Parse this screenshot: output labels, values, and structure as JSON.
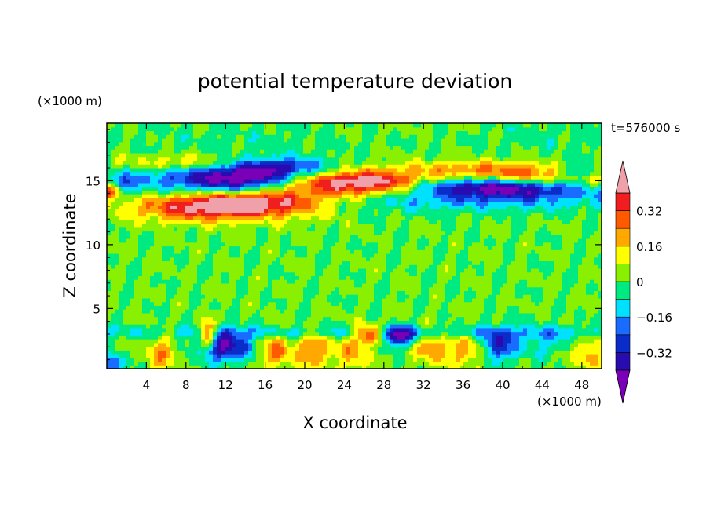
{
  "chart_data": {
    "type": "heatmap",
    "title": "potential temperature deviation",
    "xlabel": "X coordinate",
    "ylabel": "Z coordinate",
    "x_unit": "(×1000 m)",
    "y_unit": "(×1000 m)",
    "time_label": "t=576000 s",
    "xlim": [
      0,
      50
    ],
    "ylim": [
      0.3,
      19.5
    ],
    "x_ticks": [
      4,
      8,
      12,
      16,
      20,
      24,
      28,
      32,
      36,
      40,
      44,
      48
    ],
    "y_ticks": [
      5,
      10,
      15
    ],
    "colorbar": {
      "levels": [
        -0.48,
        -0.4,
        -0.32,
        -0.24,
        -0.16,
        -0.08,
        0,
        0.08,
        0.16,
        0.24,
        0.32,
        0.4,
        0.48
      ],
      "tick_labels": [
        "0.32",
        "0.16",
        "0",
        "−0.16",
        "−0.32"
      ],
      "tick_values": [
        0.32,
        0.16,
        0,
        -0.16,
        -0.32
      ],
      "colors": [
        "#7a00b8",
        "#2a0bb0",
        "#0a2cc8",
        "#1a6bff",
        "#00e0ff",
        "#00ea82",
        "#88f000",
        "#ffff00",
        "#ffa800",
        "#ff5a00",
        "#f01e1e",
        "#f0a0a8"
      ],
      "extend": "both"
    },
    "background_value": 0.01,
    "features": [
      {
        "x": 14,
        "z": 15.1,
        "sx": 4.2,
        "sz": 0.75,
        "value": -0.5
      },
      {
        "x": 8,
        "z": 15.3,
        "sx": 6,
        "sz": 0.9,
        "value": -0.18
      },
      {
        "x": 17.5,
        "z": 16.1,
        "sx": 3.5,
        "sz": 0.55,
        "value": -0.3
      },
      {
        "x": 40,
        "z": 14.6,
        "sx": 6,
        "sz": 0.55,
        "value": -0.42
      },
      {
        "x": 38,
        "z": 14.3,
        "sx": 9,
        "sz": 0.6,
        "value": -0.15
      },
      {
        "x": 47.5,
        "z": 15.6,
        "sx": 2,
        "sz": 0.5,
        "value": -0.3
      },
      {
        "x": 1.2,
        "z": 14.7,
        "sx": 1.2,
        "sz": 0.55,
        "value": -0.25
      },
      {
        "x": 14.5,
        "z": 13.3,
        "sx": 6,
        "sz": 0.75,
        "value": 0.48
      },
      {
        "x": 9,
        "z": 12.7,
        "sx": 5,
        "sz": 0.7,
        "value": 0.2
      },
      {
        "x": 23,
        "z": 14.9,
        "sx": 7,
        "sz": 0.7,
        "value": 0.4
      },
      {
        "x": 27,
        "z": 14.9,
        "sx": 3,
        "sz": 0.5,
        "value": 0.2
      },
      {
        "x": 8,
        "z": 16.4,
        "sx": 5,
        "sz": 0.5,
        "value": 0.2
      },
      {
        "x": 45,
        "z": 15.2,
        "sx": 5.5,
        "sz": 0.55,
        "value": 0.36
      },
      {
        "x": 38,
        "z": 16.0,
        "sx": 6,
        "sz": 0.45,
        "value": 0.18
      },
      {
        "x": 0.3,
        "z": 14.3,
        "sx": 0.9,
        "sz": 0.45,
        "value": 0.45
      },
      {
        "x": 25,
        "z": 13.2,
        "sx": 8,
        "sz": 0.55,
        "value": -0.1
      },
      {
        "x": 42,
        "z": 13.3,
        "sx": 8,
        "sz": 0.6,
        "value": -0.1
      },
      {
        "x": 5.5,
        "z": 1.5,
        "sx": 1.1,
        "sz": 1.0,
        "value": 0.2
      },
      {
        "x": 10.2,
        "z": 3.0,
        "sx": 0.6,
        "sz": 0.7,
        "value": 0.42
      },
      {
        "x": 12,
        "z": 2.1,
        "sx": 1.8,
        "sz": 0.8,
        "value": -0.42
      },
      {
        "x": 17,
        "z": 1.7,
        "sx": 1.1,
        "sz": 0.9,
        "value": 0.25
      },
      {
        "x": 21,
        "z": 1.8,
        "sx": 1.3,
        "sz": 1.0,
        "value": 0.25
      },
      {
        "x": 26.5,
        "z": 3.1,
        "sx": 1.0,
        "sz": 0.5,
        "value": 0.42
      },
      {
        "x": 29.5,
        "z": 2.9,
        "sx": 1.2,
        "sz": 0.5,
        "value": -0.42
      },
      {
        "x": 25,
        "z": 1.5,
        "sx": 1.0,
        "sz": 0.9,
        "value": 0.2
      },
      {
        "x": 33,
        "z": 2.0,
        "sx": 1.3,
        "sz": 0.9,
        "value": 0.22
      },
      {
        "x": 36.5,
        "z": 1.7,
        "sx": 1.1,
        "sz": 0.9,
        "value": 0.2
      },
      {
        "x": 39.5,
        "z": 2.2,
        "sx": 1.2,
        "sz": 0.9,
        "value": -0.3
      },
      {
        "x": 44,
        "z": 2.5,
        "sx": 2.5,
        "sz": 0.8,
        "value": -0.12
      },
      {
        "x": 48.5,
        "z": 1.6,
        "sx": 1.1,
        "sz": 0.9,
        "value": 0.2
      },
      {
        "x": 25,
        "z": 3.2,
        "sx": 26,
        "sz": 0.35,
        "value": -0.13
      },
      {
        "x": 0.5,
        "z": 0.7,
        "sx": 0.8,
        "sz": 0.5,
        "value": -0.3
      },
      {
        "x": 14,
        "z": 18.3,
        "sx": 8,
        "sz": 1.2,
        "value": -0.04
      },
      {
        "x": 45,
        "z": 18.5,
        "sx": 5,
        "sz": 1.0,
        "value": -0.05
      }
    ]
  }
}
